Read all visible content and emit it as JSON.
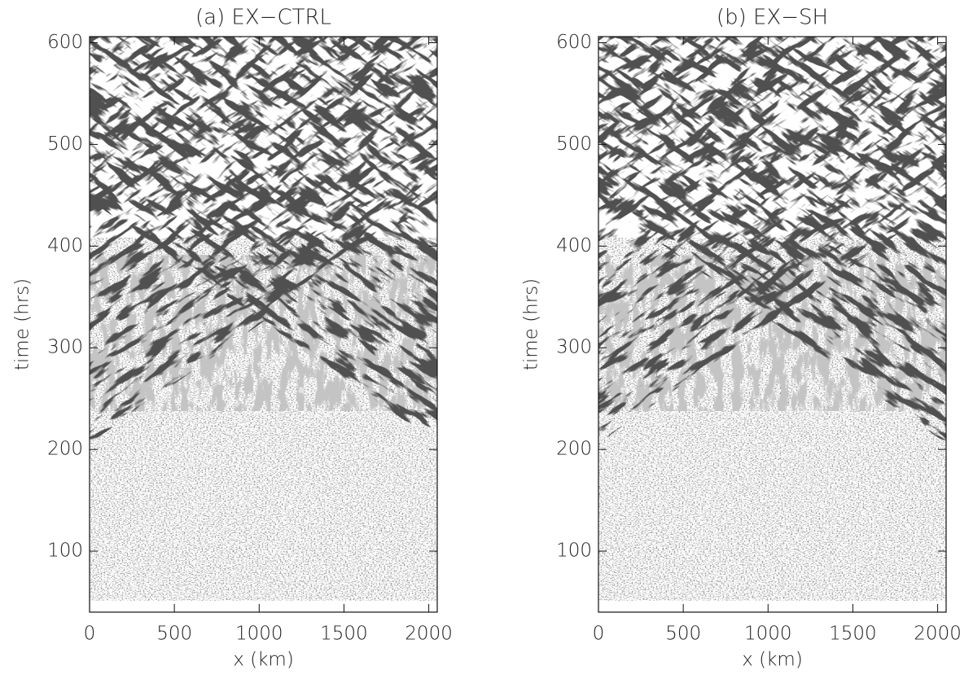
{
  "chart_data": [
    {
      "type": "heatmap",
      "title": "(a) EX−CTRL",
      "xlabel": "x (km)",
      "ylabel": "time (hrs)",
      "xlim": [
        0,
        2050
      ],
      "ylim": [
        40,
        606
      ],
      "xticks": [
        0,
        500,
        1000,
        1500,
        2000
      ],
      "yticks": [
        100,
        200,
        300,
        400,
        500,
        600
      ]
    },
    {
      "type": "heatmap",
      "title": "(b) EX−SH",
      "xlabel": "x (km)",
      "ylabel": "time (hrs)",
      "xlim": [
        0,
        2050
      ],
      "ylim": [
        40,
        606
      ],
      "xticks": [
        0,
        500,
        1000,
        1500,
        2000
      ],
      "yticks": [
        100,
        200,
        300,
        400,
        500,
        600
      ]
    }
  ]
}
